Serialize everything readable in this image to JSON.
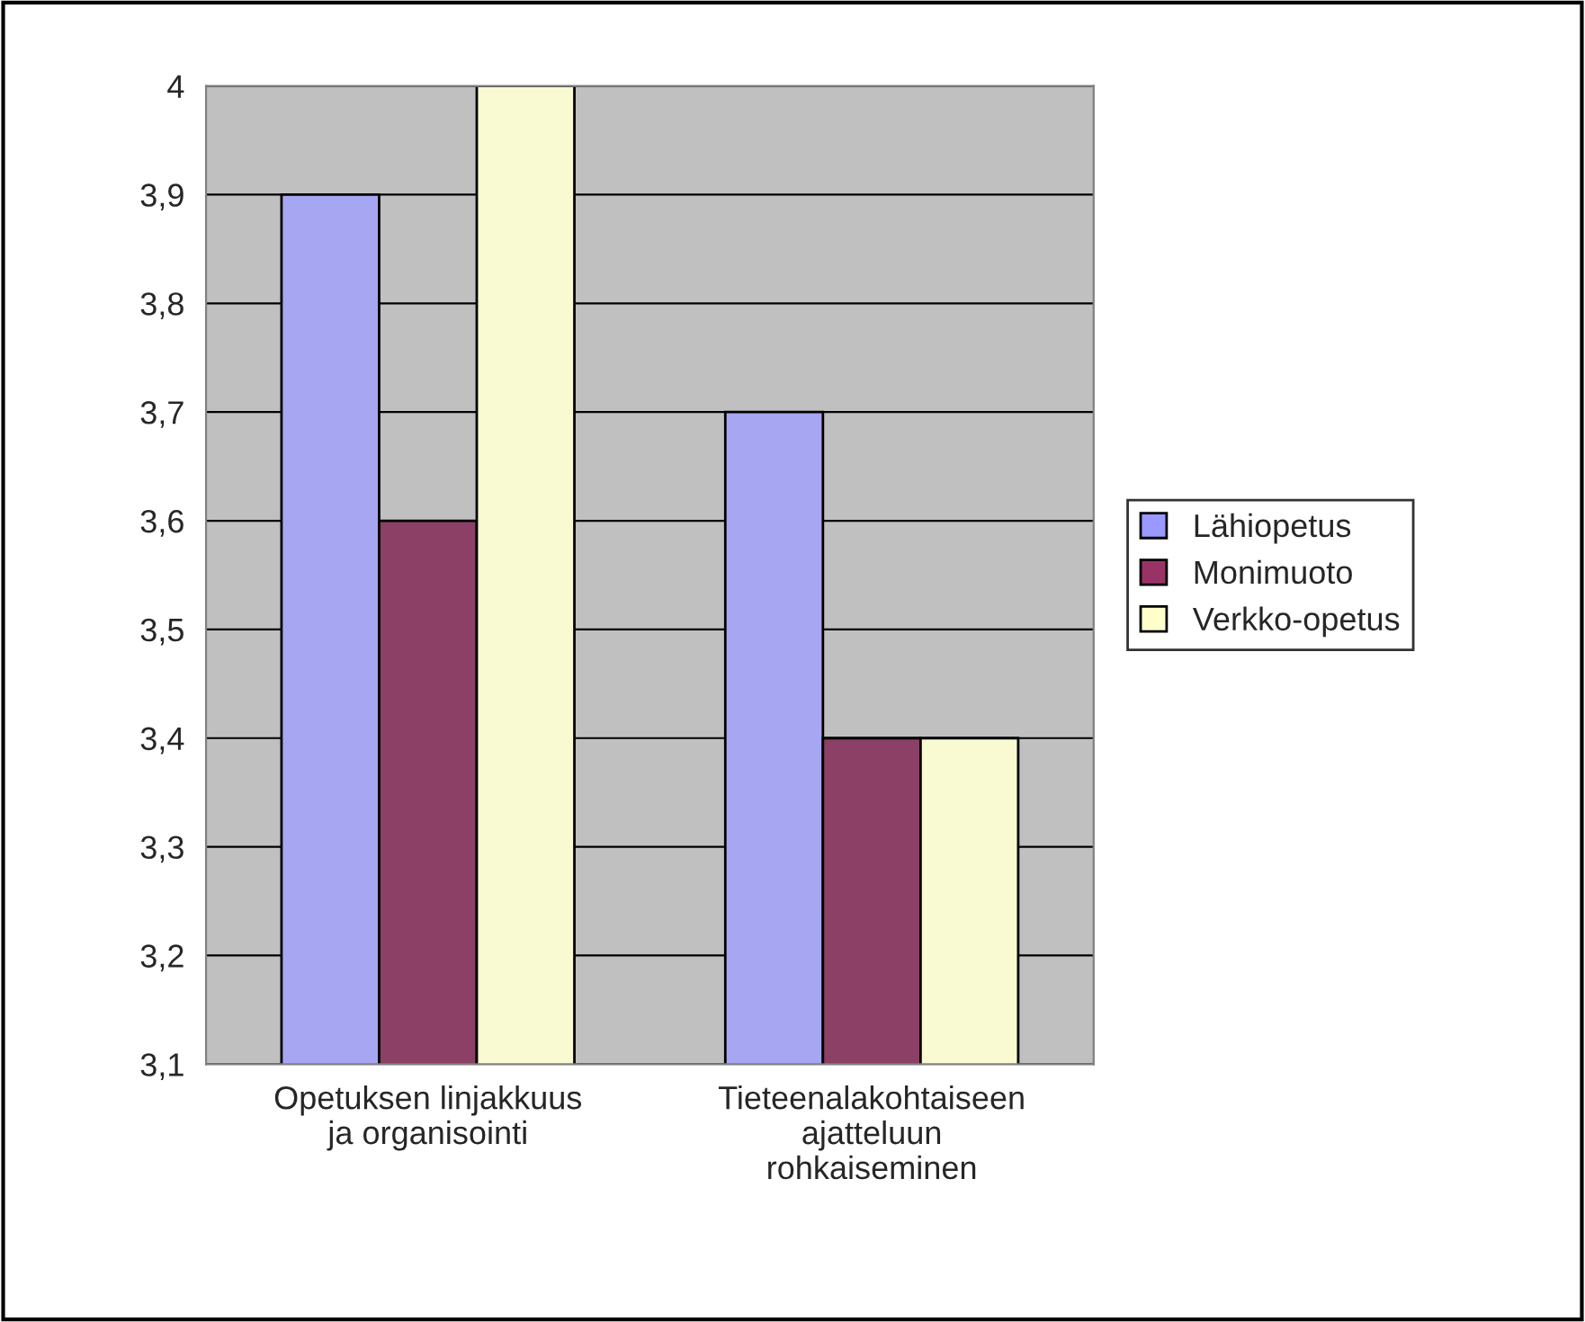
{
  "chart_data": {
    "type": "bar",
    "categories": [
      "Opetuksen linjakkuus\nja organisointi",
      "Tieteenalakohtaiseen\najatteluun\nrohkaiseminen"
    ],
    "series": [
      {
        "name": "Lähiopetus",
        "color": "#9999ff",
        "values": [
          3.9,
          3.7
        ]
      },
      {
        "name": "Monimuoto",
        "color": "#993366",
        "values": [
          3.6,
          3.4
        ]
      },
      {
        "name": "Verkko-opetus",
        "color": "#ffffcc",
        "values": [
          4.0,
          3.4
        ]
      }
    ],
    "ylim": [
      3.1,
      4
    ],
    "yticks": [
      {
        "value": 3.1,
        "label": "3,1"
      },
      {
        "value": 3.2,
        "label": "3,2"
      },
      {
        "value": 3.3,
        "label": "3,3"
      },
      {
        "value": 3.4,
        "label": "3,4"
      },
      {
        "value": 3.5,
        "label": "3,5"
      },
      {
        "value": 3.6,
        "label": "3,6"
      },
      {
        "value": 3.7,
        "label": "3,7"
      },
      {
        "value": 3.8,
        "label": "3,8"
      },
      {
        "value": 3.9,
        "label": "3,9"
      },
      {
        "value": 4,
        "label": "4"
      }
    ],
    "grid": "y",
    "legend": "right"
  }
}
